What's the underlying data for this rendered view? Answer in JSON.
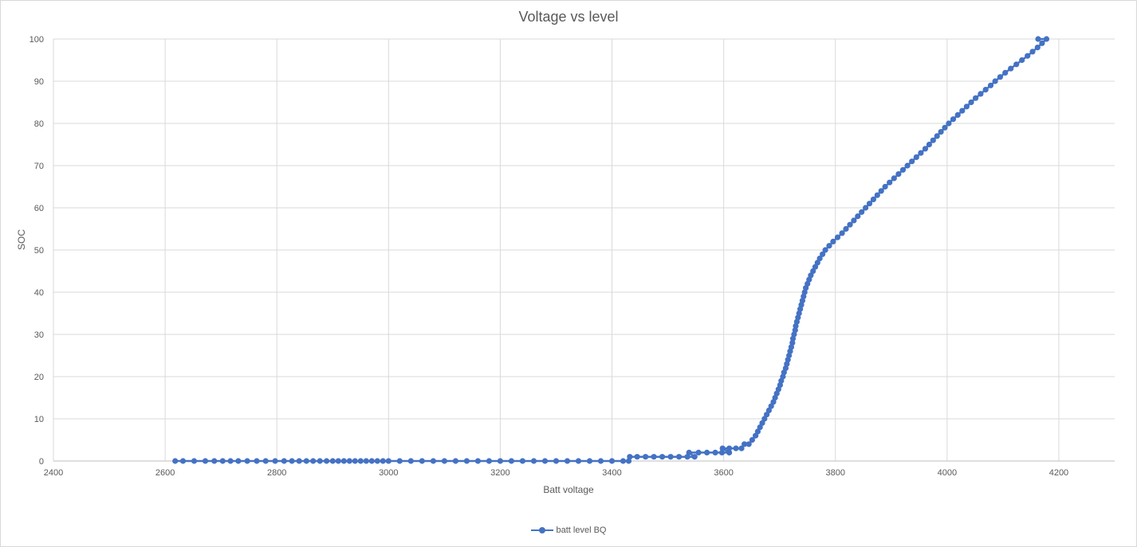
{
  "chart_data": {
    "type": "line",
    "title": "Voltage vs level",
    "xlabel": "Batt voltage",
    "ylabel": "SOC",
    "xlim": [
      2400,
      4300
    ],
    "ylim": [
      0,
      100
    ],
    "x_ticks": [
      2400,
      2600,
      2800,
      3000,
      3200,
      3400,
      3600,
      3800,
      4000,
      4200
    ],
    "y_ticks": [
      0,
      10,
      20,
      30,
      40,
      50,
      60,
      70,
      80,
      90,
      100
    ],
    "grid": true,
    "legend_position": "bottom",
    "series": [
      {
        "name": "batt level BQ",
        "color": "#4472c4",
        "marker": "circle",
        "points": [
          [
            2618,
            0
          ],
          [
            2632,
            0
          ],
          [
            2652,
            0
          ],
          [
            2672,
            0
          ],
          [
            2688,
            0
          ],
          [
            2703,
            0
          ],
          [
            2717,
            0
          ],
          [
            2731,
            0
          ],
          [
            2747,
            0
          ],
          [
            2764,
            0
          ],
          [
            2780,
            0
          ],
          [
            2797,
            0
          ],
          [
            2813,
            0
          ],
          [
            2827,
            0
          ],
          [
            2840,
            0
          ],
          [
            2853,
            0
          ],
          [
            2865,
            0
          ],
          [
            2877,
            0
          ],
          [
            2889,
            0
          ],
          [
            2900,
            0
          ],
          [
            2910,
            0
          ],
          [
            2920,
            0
          ],
          [
            2930,
            0
          ],
          [
            2940,
            0
          ],
          [
            2950,
            0
          ],
          [
            2960,
            0
          ],
          [
            2970,
            0
          ],
          [
            2980,
            0
          ],
          [
            2990,
            0
          ],
          [
            3000,
            0
          ],
          [
            3020,
            0
          ],
          [
            3040,
            0
          ],
          [
            3060,
            0
          ],
          [
            3080,
            0
          ],
          [
            3100,
            0
          ],
          [
            3120,
            0
          ],
          [
            3140,
            0
          ],
          [
            3160,
            0
          ],
          [
            3180,
            0
          ],
          [
            3200,
            0
          ],
          [
            3220,
            0
          ],
          [
            3240,
            0
          ],
          [
            3260,
            0
          ],
          [
            3280,
            0
          ],
          [
            3300,
            0
          ],
          [
            3320,
            0
          ],
          [
            3340,
            0
          ],
          [
            3360,
            0
          ],
          [
            3380,
            0
          ],
          [
            3400,
            0
          ],
          [
            3420,
            0
          ],
          [
            3430,
            0
          ],
          [
            3432,
            1
          ],
          [
            3445,
            1
          ],
          [
            3460,
            1
          ],
          [
            3475,
            1
          ],
          [
            3490,
            1
          ],
          [
            3505,
            1
          ],
          [
            3520,
            1
          ],
          [
            3535,
            1
          ],
          [
            3548,
            1
          ],
          [
            3538,
            2
          ],
          [
            3555,
            2
          ],
          [
            3570,
            2
          ],
          [
            3585,
            2
          ],
          [
            3597,
            2
          ],
          [
            3610,
            2
          ],
          [
            3598,
            3
          ],
          [
            3610,
            3
          ],
          [
            3622,
            3
          ],
          [
            3632,
            3
          ],
          [
            3637,
            4
          ],
          [
            3645,
            4
          ],
          [
            3651,
            5
          ],
          [
            3657,
            6
          ],
          [
            3661,
            7
          ],
          [
            3665,
            8
          ],
          [
            3669,
            9
          ],
          [
            3673,
            10
          ],
          [
            3677,
            11
          ],
          [
            3681,
            12
          ],
          [
            3685,
            13
          ],
          [
            3689,
            14
          ],
          [
            3692,
            15
          ],
          [
            3695,
            16
          ],
          [
            3698,
            17
          ],
          [
            3701,
            18
          ],
          [
            3703,
            19
          ],
          [
            3706,
            20
          ],
          [
            3708,
            21
          ],
          [
            3711,
            22
          ],
          [
            3713,
            23
          ],
          [
            3715,
            24
          ],
          [
            3717,
            25
          ],
          [
            3719,
            26
          ],
          [
            3721,
            27
          ],
          [
            3723,
            28
          ],
          [
            3724,
            29
          ],
          [
            3726,
            30
          ],
          [
            3728,
            31
          ],
          [
            3729,
            32
          ],
          [
            3731,
            33
          ],
          [
            3733,
            34
          ],
          [
            3735,
            35
          ],
          [
            3737,
            36
          ],
          [
            3739,
            37
          ],
          [
            3741,
            38
          ],
          [
            3743,
            39
          ],
          [
            3745,
            40
          ],
          [
            3747,
            41
          ],
          [
            3750,
            42
          ],
          [
            3753,
            43
          ],
          [
            3756,
            44
          ],
          [
            3760,
            45
          ],
          [
            3764,
            46
          ],
          [
            3768,
            47
          ],
          [
            3772,
            48
          ],
          [
            3777,
            49
          ],
          [
            3782,
            50
          ],
          [
            3789,
            51
          ],
          [
            3796,
            52
          ],
          [
            3804,
            53
          ],
          [
            3812,
            54
          ],
          [
            3819,
            55
          ],
          [
            3826,
            56
          ],
          [
            3833,
            57
          ],
          [
            3840,
            58
          ],
          [
            3847,
            59
          ],
          [
            3854,
            60
          ],
          [
            3861,
            61
          ],
          [
            3868,
            62
          ],
          [
            3875,
            63
          ],
          [
            3882,
            64
          ],
          [
            3889,
            65
          ],
          [
            3897,
            66
          ],
          [
            3905,
            67
          ],
          [
            3913,
            68
          ],
          [
            3921,
            69
          ],
          [
            3929,
            70
          ],
          [
            3937,
            71
          ],
          [
            3945,
            72
          ],
          [
            3953,
            73
          ],
          [
            3961,
            74
          ],
          [
            3968,
            75
          ],
          [
            3975,
            76
          ],
          [
            3982,
            77
          ],
          [
            3989,
            78
          ],
          [
            3996,
            79
          ],
          [
            4003,
            80
          ],
          [
            4011,
            81
          ],
          [
            4019,
            82
          ],
          [
            4027,
            83
          ],
          [
            4035,
            84
          ],
          [
            4043,
            85
          ],
          [
            4051,
            86
          ],
          [
            4060,
            87
          ],
          [
            4069,
            88
          ],
          [
            4078,
            89
          ],
          [
            4086,
            90
          ],
          [
            4095,
            91
          ],
          [
            4104,
            92
          ],
          [
            4114,
            93
          ],
          [
            4124,
            94
          ],
          [
            4134,
            95
          ],
          [
            4144,
            96
          ],
          [
            4153,
            97
          ],
          [
            4162,
            98
          ],
          [
            4170,
            99
          ],
          [
            4178,
            100
          ],
          [
            4163,
            100
          ]
        ]
      }
    ]
  }
}
